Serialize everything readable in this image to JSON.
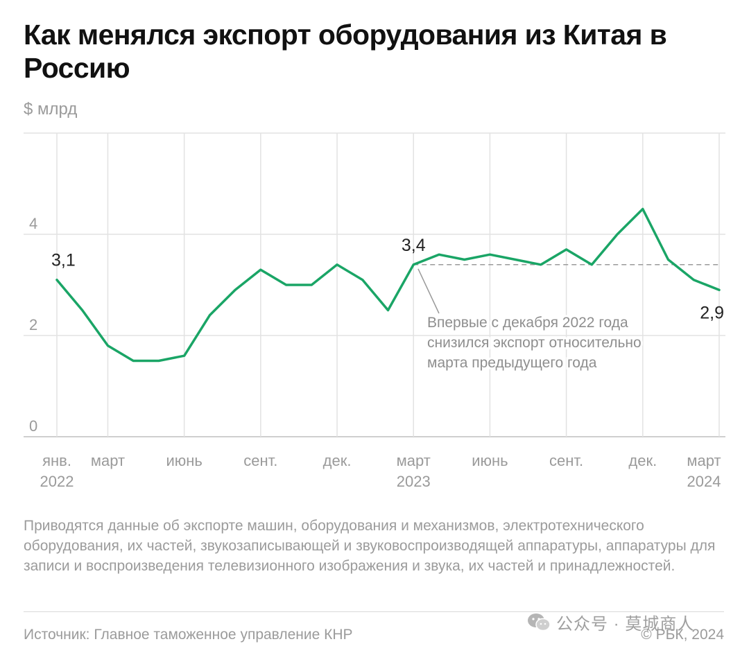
{
  "title": "Как менялся экспорт оборудования из Китая в Россию",
  "unit_label": "$ млрд",
  "chart_data": {
    "type": "line",
    "title": "Как менялся экспорт оборудования из Китая в Россию",
    "ylabel": "$ млрд",
    "ylim": [
      0,
      6
    ],
    "yticks": [
      0,
      2,
      4
    ],
    "x_months": [
      "2022-01",
      "2022-02",
      "2022-03",
      "2022-04",
      "2022-05",
      "2022-06",
      "2022-07",
      "2022-08",
      "2022-09",
      "2022-10",
      "2022-11",
      "2022-12",
      "2023-01",
      "2023-02",
      "2023-03",
      "2023-04",
      "2023-05",
      "2023-06",
      "2023-07",
      "2023-08",
      "2023-09",
      "2023-10",
      "2023-11",
      "2023-12",
      "2024-01",
      "2024-02",
      "2024-03"
    ],
    "values": [
      3.1,
      2.5,
      1.8,
      1.5,
      1.5,
      1.6,
      2.4,
      2.9,
      3.3,
      3.0,
      3.0,
      3.4,
      3.1,
      2.5,
      3.4,
      3.6,
      3.5,
      3.6,
      3.5,
      3.4,
      3.7,
      3.4,
      4.0,
      4.5,
      3.5,
      3.1,
      2.9
    ],
    "x_ticks": [
      {
        "index": 0,
        "label": "янв.",
        "year": "2022"
      },
      {
        "index": 2,
        "label": "март",
        "year": ""
      },
      {
        "index": 5,
        "label": "июнь",
        "year": ""
      },
      {
        "index": 8,
        "label": "сент.",
        "year": ""
      },
      {
        "index": 11,
        "label": "дек.",
        "year": ""
      },
      {
        "index": 14,
        "label": "март",
        "year": "2023"
      },
      {
        "index": 17,
        "label": "июнь",
        "year": ""
      },
      {
        "index": 20,
        "label": "сент.",
        "year": ""
      },
      {
        "index": 23,
        "label": "дек.",
        "year": ""
      },
      {
        "index": 26,
        "label": "март",
        "year": "2024"
      }
    ],
    "data_labels": [
      {
        "index": 0,
        "text": "3,1"
      },
      {
        "index": 14,
        "text": "3,4"
      },
      {
        "index": 26,
        "text": "2,9"
      }
    ],
    "reference_line": {
      "value": 3.4,
      "from_index": 14,
      "to_index": 26
    },
    "annotation": {
      "anchor_index": 15,
      "lines": [
        "Впервые с декабря 2022 года",
        "снизился экспорт относительно",
        "марта предыдущего года"
      ]
    },
    "colors": {
      "line": "#1aa566",
      "grid": "#e2e2e2",
      "axis": "#cfcfcf",
      "ref": "#9a9a9a",
      "tick": "#9a9a9a",
      "label": "#222222",
      "annot": "#8e8e8e"
    }
  },
  "footnote": "Приводятся данные об экспорте машин, оборудования и механизмов, электротехнического оборудования, их частей, звукозаписывающей и звуковоспроизводящей аппаратуры, аппаратуры для записи и воспроизведения телевизионного изображения и звука, их частей и принадлежностей.",
  "source": "Источник: Главное таможенное управление КНР",
  "watermark": "公众号 · 莫城商人",
  "copyright": "© РБК, 2024"
}
